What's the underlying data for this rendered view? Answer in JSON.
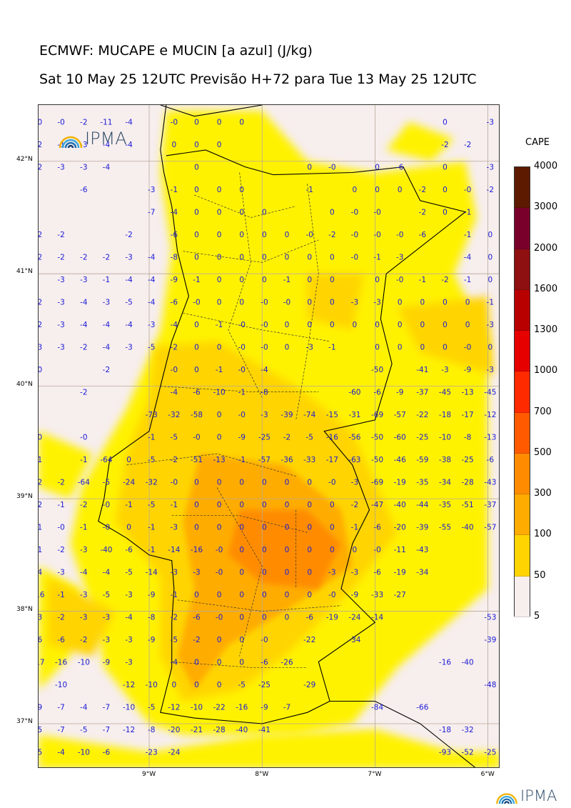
{
  "header": {
    "title": "ECMWF: MUCAPE e MUCIN [a azul] (J/kg)",
    "subtitle": "Sat 10 May 25 12UTC Previsão H+72 para Tue 13 May 25 12UTC"
  },
  "map": {
    "region": "Portugal continental",
    "lat_range": [
      36.6,
      42.5
    ],
    "lon_range": [
      -9.98,
      -5.89
    ],
    "lat_labels": [
      "42°N",
      "41°N",
      "40°N",
      "39°N",
      "38°N",
      "37°N"
    ],
    "lon_labels": [
      "9°W",
      "8°W",
      "7°W",
      "6°W"
    ],
    "colors": {
      "background": "#f7eeee",
      "cape_50_100": "#fff200",
      "cape_100_300": "#ffd400",
      "cape_300_500": "#ffac00",
      "cape_500_700": "#ff8c00",
      "cin_text": "#1a1ad6",
      "grid": "#b8a89a",
      "coast": "#000000"
    },
    "cin_grid": {
      "lons": [
        -9.98,
        -9.78,
        -9.58,
        -9.38,
        -9.18,
        -8.98,
        -8.78,
        -8.58,
        -8.38,
        -8.18,
        -7.98,
        -7.78,
        -7.58,
        -7.38,
        -7.18,
        -6.98,
        -6.78,
        -6.58,
        -6.38,
        -6.18,
        -5.98
      ],
      "lats": [
        42.35,
        42.15,
        41.95,
        41.75,
        41.55,
        41.35,
        41.15,
        40.95,
        40.75,
        40.55,
        40.35,
        40.15,
        39.95,
        39.75,
        39.55,
        39.35,
        39.15,
        38.95,
        38.75,
        38.55,
        38.35,
        38.15,
        37.95,
        37.75,
        37.55,
        37.35,
        37.15,
        36.95,
        36.75
      ],
      "rows": [
        [
          "-0",
          "-0",
          "-2",
          "-11",
          "-4",
          "",
          "-0",
          "0",
          "0",
          "0",
          "",
          "",
          "",
          "",
          "",
          "",
          "",
          "",
          "0",
          "",
          "-3"
        ],
        [
          "-2",
          "-1",
          "-3",
          "-4",
          "-4",
          "",
          "0",
          "0",
          "0",
          "",
          "",
          "",
          "",
          "",
          "",
          "",
          "",
          "",
          "-2",
          "-2",
          ""
        ],
        [
          "-2",
          "-3",
          "-3",
          "-4",
          "",
          "",
          "",
          "0",
          "",
          "",
          "",
          "",
          "0",
          "-0",
          "",
          "0",
          "-6",
          "",
          "0",
          "",
          "-3"
        ],
        [
          "",
          "",
          "-6",
          "",
          "",
          "-3",
          "-1",
          "0",
          "0",
          "0",
          "",
          "",
          "-1",
          "",
          "0",
          "0",
          "0",
          "-2",
          "0",
          "-0",
          "-2"
        ],
        [
          "",
          "",
          "",
          "",
          "",
          "-7",
          "-4",
          "0",
          "0",
          "0",
          "0",
          "",
          "",
          "0",
          "-0",
          "-0",
          "",
          "-2",
          "0",
          "-1",
          ""
        ],
        [
          "-2",
          "-2",
          "",
          "",
          "-2",
          "",
          "-6",
          "0",
          "0",
          "0",
          "0",
          "0",
          "-0",
          "-2",
          "-0",
          "-0",
          "-0",
          "-6",
          "",
          "-1",
          "0"
        ],
        [
          "-2",
          "-2",
          "-2",
          "-2",
          "-3",
          "-4",
          "-8",
          "0",
          "0",
          "0",
          "0",
          "0",
          "0",
          "0",
          "-0",
          "-1",
          "-3",
          "",
          "",
          "-4",
          "0"
        ],
        [
          "",
          "-3",
          "-3",
          "-1",
          "-4",
          "-4",
          "-9",
          "-1",
          "0",
          "0",
          "0",
          "-1",
          "0",
          "0",
          "",
          "0",
          "-0",
          "-1",
          "-2",
          "-1",
          "0"
        ],
        [
          "-2",
          "-3",
          "-4",
          "-3",
          "-5",
          "-4",
          "-6",
          "-0",
          "0",
          "0",
          "-0",
          "-0",
          "0",
          "0",
          "-3",
          "-3",
          "0",
          "0",
          "0",
          "0",
          "-1"
        ],
        [
          "-2",
          "-3",
          "-4",
          "-4",
          "-4",
          "-3",
          "-4",
          "0",
          "-1",
          "-0",
          "-0",
          "0",
          "0",
          "0",
          "0",
          "0",
          "0",
          "0",
          "0",
          "0",
          "-3"
        ],
        [
          "-3",
          "-3",
          "-2",
          "-4",
          "-3",
          "-5",
          "-2",
          "0",
          "0",
          "-0",
          "-0",
          "0",
          "-3",
          "-1",
          "",
          "0",
          "0",
          "0",
          "0",
          "-0",
          "0"
        ],
        [
          "-0",
          "",
          "",
          "-2",
          "",
          "",
          "-0",
          "0",
          "-1",
          "-0",
          "-4",
          "",
          "",
          "",
          "",
          "-50",
          "",
          "-41",
          "-3",
          "-9",
          "-3"
        ],
        [
          "",
          "",
          "-2",
          "",
          "",
          "",
          "-4",
          "-6",
          "-10",
          "-1",
          "-8",
          "",
          "",
          "",
          "-60",
          "-6",
          "-9",
          "-37",
          "-45",
          "-13",
          "-45"
        ],
        [
          "",
          "",
          "",
          "",
          "",
          "-73",
          "-32",
          "-58",
          "0",
          "-0",
          "-3",
          "-39",
          "-74",
          "-15",
          "-31",
          "-69",
          "-57",
          "-22",
          "-18",
          "-17",
          "-12"
        ],
        [
          "-0",
          "",
          "-0",
          "",
          "",
          "-1",
          "-5",
          "-0",
          "0",
          "-9",
          "-25",
          "-2",
          "-5",
          "-16",
          "-56",
          "-50",
          "-60",
          "-25",
          "-10",
          "-8",
          "-13"
        ],
        [
          "-1",
          "",
          "-1",
          "-64",
          "0",
          "-5",
          "-2",
          "-51",
          "-13",
          "-1",
          "-57",
          "-36",
          "-33",
          "-17",
          "-63",
          "-50",
          "-46",
          "-59",
          "-38",
          "-25",
          "-6"
        ],
        [
          "-2",
          "-2",
          "-64",
          "-5",
          "-24",
          "-32",
          "-0",
          "0",
          "0",
          "0",
          "0",
          "0",
          "0",
          "-0",
          "-3",
          "-69",
          "-19",
          "-35",
          "-34",
          "-28",
          "-43"
        ],
        [
          "-2",
          "-1",
          "-2",
          "-0",
          "-1",
          "-5",
          "-1",
          "0",
          "0",
          "0",
          "0",
          "0",
          "0",
          "0",
          "-2",
          "-47",
          "-40",
          "-44",
          "-35",
          "-51",
          "-37"
        ],
        [
          "-1",
          "-0",
          "-1",
          "-0",
          "0",
          "-1",
          "-3",
          "0",
          "0",
          "0",
          "0",
          "0",
          "0",
          "0",
          "-1",
          "-6",
          "-20",
          "-39",
          "-55",
          "-40",
          "-57"
        ],
        [
          "-1",
          "-2",
          "-3",
          "-40",
          "-6",
          "-1",
          "-14",
          "-16",
          "-0",
          "0",
          "0",
          "0",
          "0",
          "0",
          "0",
          "-0",
          "-11",
          "-43",
          "",
          "",
          ""
        ],
        [
          "-4",
          "-3",
          "-4",
          "-4",
          "-5",
          "-14",
          "-3",
          "-3",
          "-0",
          "0",
          "0",
          "0",
          "0",
          "-3",
          "-3",
          "-6",
          "-19",
          "-34",
          "",
          "",
          ""
        ],
        [
          "-16",
          "-1",
          "-3",
          "-5",
          "-3",
          "-9",
          "-1",
          "0",
          "0",
          "0",
          "0",
          "0",
          "0",
          "-0",
          "-9",
          "-33",
          "-27",
          "",
          "",
          "",
          ""
        ],
        [
          "-3",
          "-2",
          "-3",
          "-3",
          "-4",
          "-8",
          "-2",
          "-6",
          "-0",
          "0",
          "0",
          "0",
          "-6",
          "-19",
          "-24",
          "-14",
          "",
          "",
          "",
          "",
          "-53"
        ],
        [
          "-6",
          "-6",
          "-2",
          "-3",
          "-3",
          "-9",
          "-5",
          "-2",
          "0",
          "0",
          "-0",
          "",
          "-22",
          "",
          "-34",
          "",
          "",
          "",
          "",
          "",
          "-39"
        ],
        [
          "-17",
          "-16",
          "-10",
          "-9",
          "-3",
          "",
          "-4",
          "0",
          "0",
          "0",
          "-6",
          "-26",
          "",
          "",
          "",
          "",
          "",
          "",
          "-16",
          "-40",
          ""
        ],
        [
          "",
          "-10",
          "",
          "",
          "-12",
          "-10",
          "0",
          "0",
          "0",
          "-5",
          "-25",
          "",
          "-29",
          "",
          "",
          "",
          "",
          "",
          "",
          "",
          "-48"
        ],
        [
          "-9",
          "-7",
          "-4",
          "-7",
          "-10",
          "-5",
          "-12",
          "-10",
          "-22",
          "-16",
          "-9",
          "-7",
          "",
          "",
          "",
          "-84",
          "",
          "-66",
          "",
          "",
          ""
        ],
        [
          "-5",
          "-7",
          "-5",
          "-7",
          "-12",
          "-8",
          "-20",
          "-21",
          "-28",
          "-40",
          "-41",
          "",
          "",
          "",
          "",
          "",
          "",
          "",
          "-18",
          "-32",
          ""
        ],
        [
          "-5",
          "-4",
          "-10",
          "-6",
          "",
          "-23",
          "-24",
          "",
          "",
          "",
          "",
          "",
          "",
          "",
          "",
          "",
          "",
          "",
          "-93",
          "-52",
          "-25"
        ]
      ]
    }
  },
  "colorbar": {
    "title": "CAPE",
    "levels": [
      "5",
      "50",
      "100",
      "300",
      "500",
      "700",
      "1000",
      "1300",
      "1600",
      "2000",
      "3000",
      "4000"
    ],
    "colors": [
      "#f7eeee",
      "#fff200",
      "#ffd400",
      "#ffac00",
      "#ff8c00",
      "#ff5a00",
      "#ff2a00",
      "#e60000",
      "#b80000",
      "#8e1010",
      "#7a002c",
      "#5e1a00"
    ]
  },
  "logos": {
    "map_logo_text": "IPMA",
    "footer_logo_text": "IPMA"
  }
}
